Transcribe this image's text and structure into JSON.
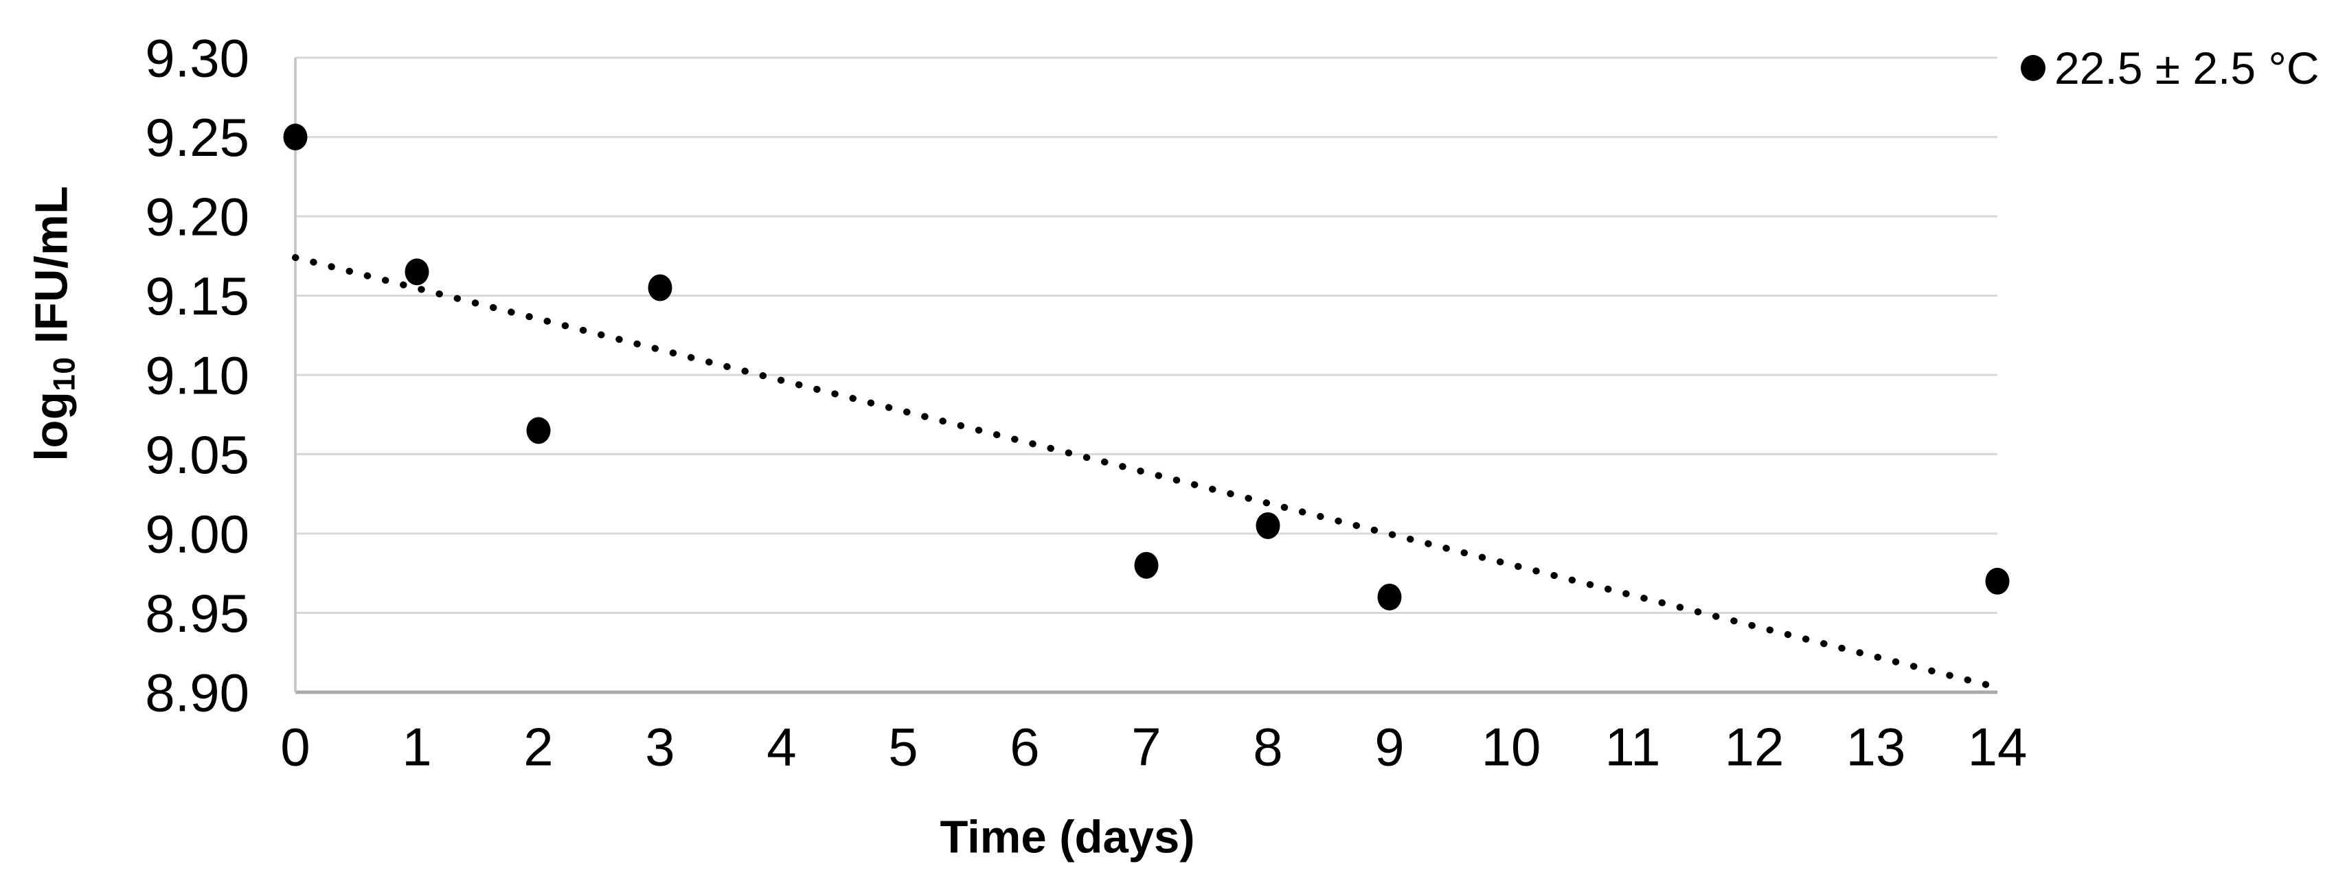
{
  "colors": {
    "background": "#ffffff",
    "text": "#000000",
    "gridline": "#d9d9d9",
    "y_axis_line": "#c3c3c3",
    "x_axis_line": "#a9a9a9",
    "series": "#000000",
    "trendline": "#000000"
  },
  "chart_data": {
    "type": "scatter",
    "title": "",
    "xlabel": "Time (days)",
    "ylabel": {
      "pre": "log",
      "sub": "10",
      "post": " IFU/mL"
    },
    "xlim": [
      0,
      14
    ],
    "ylim": [
      8.9,
      9.3
    ],
    "grid": "horizontal-only",
    "x_ticks": [
      0,
      1,
      2,
      3,
      4,
      5,
      6,
      7,
      8,
      9,
      10,
      11,
      12,
      13,
      14
    ],
    "y_ticks": [
      "9.30",
      "9.25",
      "9.20",
      "9.15",
      "9.10",
      "9.05",
      "9.00",
      "8.95",
      "8.90"
    ],
    "legend": {
      "position": "top-right",
      "entries": [
        {
          "label": "22.5 ± 2.5 °C",
          "marker": "filled-circle",
          "color": "#000000"
        }
      ]
    },
    "series": [
      {
        "name": "22.5 ± 2.5 °C",
        "marker": "filled-circle",
        "color": "#000000",
        "x": [
          0,
          1,
          2,
          3,
          7,
          8,
          9,
          14
        ],
        "y": [
          9.25,
          9.165,
          9.065,
          9.155,
          8.98,
          9.005,
          8.96,
          8.97
        ]
      }
    ],
    "trendline": {
      "style": "dotted",
      "color": "#000000",
      "x_start": 0,
      "y_start": 9.174,
      "x_end": 14,
      "y_end": 8.903,
      "slope_per_day": -0.0193
    }
  }
}
